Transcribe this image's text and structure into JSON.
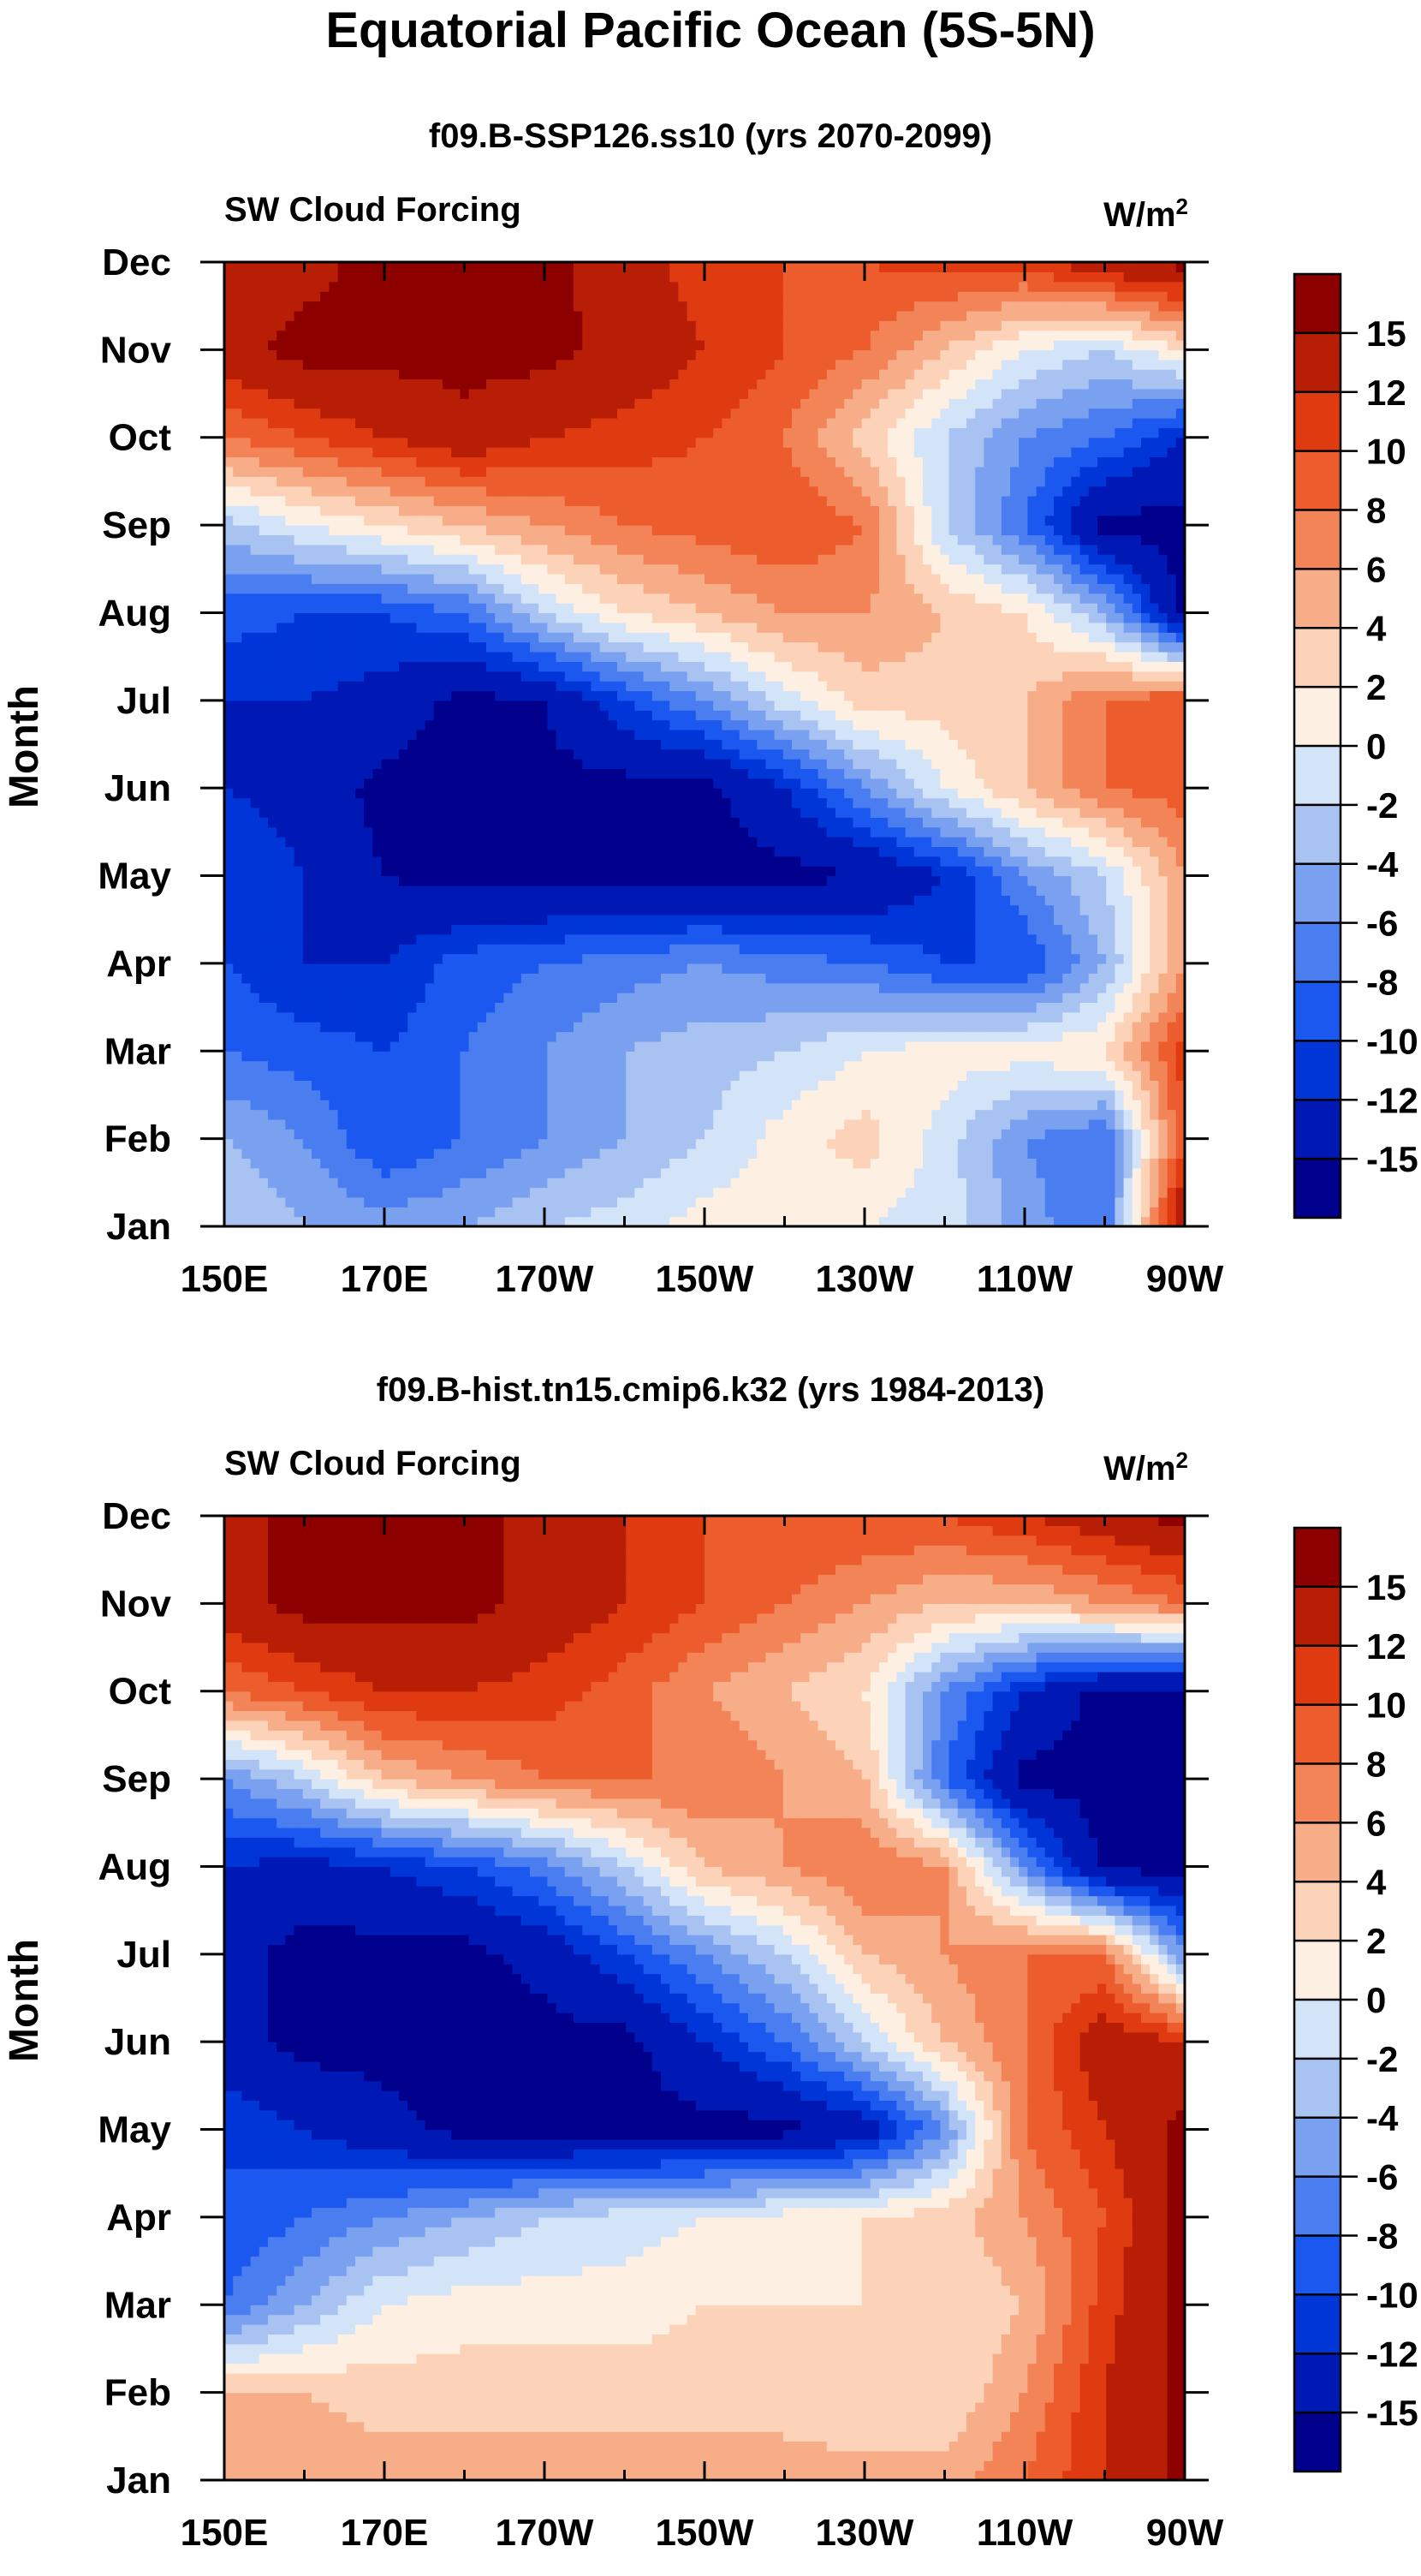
{
  "title": "Equatorial Pacific Ocean (5S-5N)",
  "colors": [
    "#00008c",
    "#0019b4",
    "#0035d8",
    "#1a58f0",
    "#4a7ef0",
    "#7aa0f0",
    "#a8c2f2",
    "#d4e4f8",
    "#fdf0e2",
    "#fcd2b8",
    "#f7ad88",
    "#f28458",
    "#ec5c2c",
    "#e03a10",
    "#b81e06",
    "#8c0000"
  ],
  "chart_data": [
    {
      "type": "heatmap",
      "subtitle": "f09.B-SSP126.ss10 (yrs 2070-2099)",
      "left_label": "SW Cloud Forcing",
      "units_label": "W/m",
      "units_sup": "2",
      "ylabel": "Month",
      "xticks": [
        "150E",
        "170E",
        "170W",
        "150W",
        "130W",
        "110W",
        "90W"
      ],
      "yticks": [
        "Jan",
        "Feb",
        "Mar",
        "Apr",
        "May",
        "Jun",
        "Jul",
        "Aug",
        "Sep",
        "Oct",
        "Nov",
        "Dec"
      ],
      "colorbar_labels": [
        "15",
        "12",
        "10",
        "8",
        "6",
        "4",
        "2",
        "0",
        "-2",
        "-4",
        "-6",
        "-8",
        "-10",
        "-12",
        "-15"
      ],
      "x": [
        150,
        160,
        170,
        180,
        190,
        200,
        210,
        220,
        230,
        240,
        250,
        260,
        270
      ],
      "months": [
        "Jan",
        "Feb",
        "Mar",
        "Apr",
        "May",
        "Jun",
        "Jul",
        "Aug",
        "Sep",
        "Oct",
        "Nov",
        "Dec"
      ],
      "values": [
        [
          -2,
          -4,
          -5,
          -4,
          -2,
          -1,
          1,
          1,
          0,
          -1,
          -5,
          -8,
          16
        ],
        [
          -4,
          -6,
          -10,
          -8,
          -6,
          -4,
          -2,
          1,
          3,
          -1,
          -6,
          -8,
          10
        ],
        [
          -8,
          -9,
          -10,
          -8,
          -6,
          -4,
          -3,
          -2,
          0,
          1,
          1,
          2,
          11
        ],
        [
          -10,
          -12,
          -12,
          -9,
          -8,
          -7,
          -6,
          -7,
          -8,
          -10,
          -10,
          -4,
          6
        ],
        [
          -10,
          -12,
          -15,
          -16,
          -16,
          -16,
          -16,
          -16,
          -15,
          -12,
          -6,
          -2,
          6
        ],
        [
          -12,
          -13,
          -16,
          -16,
          -16,
          -16,
          -16,
          -12,
          -6,
          0,
          4,
          8,
          9
        ],
        [
          -12,
          -12,
          -13,
          -16,
          -15,
          -10,
          -6,
          -1,
          3,
          3,
          4,
          8,
          10
        ],
        [
          -9,
          -10,
          -10,
          -8,
          -2,
          2,
          4,
          6,
          6,
          4,
          2,
          -4,
          -16
        ],
        [
          -3,
          0,
          2,
          4,
          6,
          8,
          9,
          10,
          8,
          -2,
          -8,
          -16,
          -16
        ],
        [
          8,
          10,
          12,
          14,
          12,
          11,
          10,
          8,
          3,
          -2,
          -6,
          -8,
          -12
        ],
        [
          14,
          16,
          16,
          16,
          16,
          14,
          12,
          10,
          8,
          4,
          0,
          -2,
          2
        ],
        [
          12,
          14,
          16,
          16,
          16,
          13,
          11,
          10,
          10,
          11,
          11,
          14,
          16
        ]
      ]
    },
    {
      "type": "heatmap",
      "subtitle": "f09.B-hist.tn15.cmip6.k32 (yrs 1984-2013)",
      "left_label": "SW Cloud Forcing",
      "units_label": "W/m",
      "units_sup": "2",
      "ylabel": "Month",
      "xticks": [
        "150E",
        "170E",
        "170W",
        "150W",
        "130W",
        "110W",
        "90W"
      ],
      "yticks": [
        "Jan",
        "Feb",
        "Mar",
        "Apr",
        "May",
        "Jun",
        "Jul",
        "Aug",
        "Sep",
        "Oct",
        "Nov",
        "Dec"
      ],
      "colorbar_labels": [
        "15",
        "12",
        "10",
        "8",
        "6",
        "4",
        "2",
        "0",
        "-2",
        "-4",
        "-6",
        "-8",
        "-10",
        "-12",
        "-15"
      ],
      "x": [
        150,
        160,
        170,
        180,
        190,
        200,
        210,
        220,
        230,
        240,
        250,
        260,
        270
      ],
      "months": [
        "Jan",
        "Feb",
        "Mar",
        "Apr",
        "May",
        "Jun",
        "Jul",
        "Aug",
        "Sep",
        "Oct",
        "Nov",
        "Dec"
      ],
      "values": [
        [
          6,
          6,
          5,
          5,
          5,
          5,
          5,
          5,
          5,
          5,
          8,
          12,
          16
        ],
        [
          4,
          4,
          3,
          3,
          3,
          3,
          3,
          3,
          2,
          2,
          6,
          12,
          16
        ],
        [
          -8,
          -4,
          0,
          1,
          1,
          1,
          2,
          2,
          2,
          2,
          4,
          11,
          16
        ],
        [
          -10,
          -8,
          -6,
          -4,
          -2,
          -1,
          0,
          1,
          2,
          3,
          6,
          10,
          16
        ],
        [
          -10,
          -12,
          -14,
          -16,
          -16,
          -16,
          -16,
          -16,
          -14,
          -6,
          8,
          12,
          16
        ],
        [
          -14,
          -16,
          -16,
          -16,
          -16,
          -16,
          -12,
          -8,
          -2,
          4,
          8,
          14,
          12
        ],
        [
          -14,
          -16,
          -16,
          -16,
          -14,
          -10,
          -6,
          -2,
          4,
          6,
          8,
          8,
          -6
        ],
        [
          -12,
          -13,
          -12,
          -10,
          -7,
          -2,
          4,
          6,
          8,
          6,
          -6,
          -16,
          -16
        ],
        [
          -6,
          -2,
          4,
          6,
          8,
          8,
          8,
          6,
          4,
          -8,
          -16,
          -16,
          -16
        ],
        [
          8,
          10,
          12,
          12,
          11,
          9,
          6,
          4,
          2,
          -6,
          -12,
          -16,
          -16
        ],
        [
          14,
          16,
          16,
          16,
          14,
          12,
          10,
          8,
          6,
          4,
          4,
          6,
          8
        ],
        [
          14,
          16,
          16,
          16,
          14,
          12,
          10,
          10,
          10,
          10,
          12,
          14,
          16
        ]
      ]
    }
  ]
}
